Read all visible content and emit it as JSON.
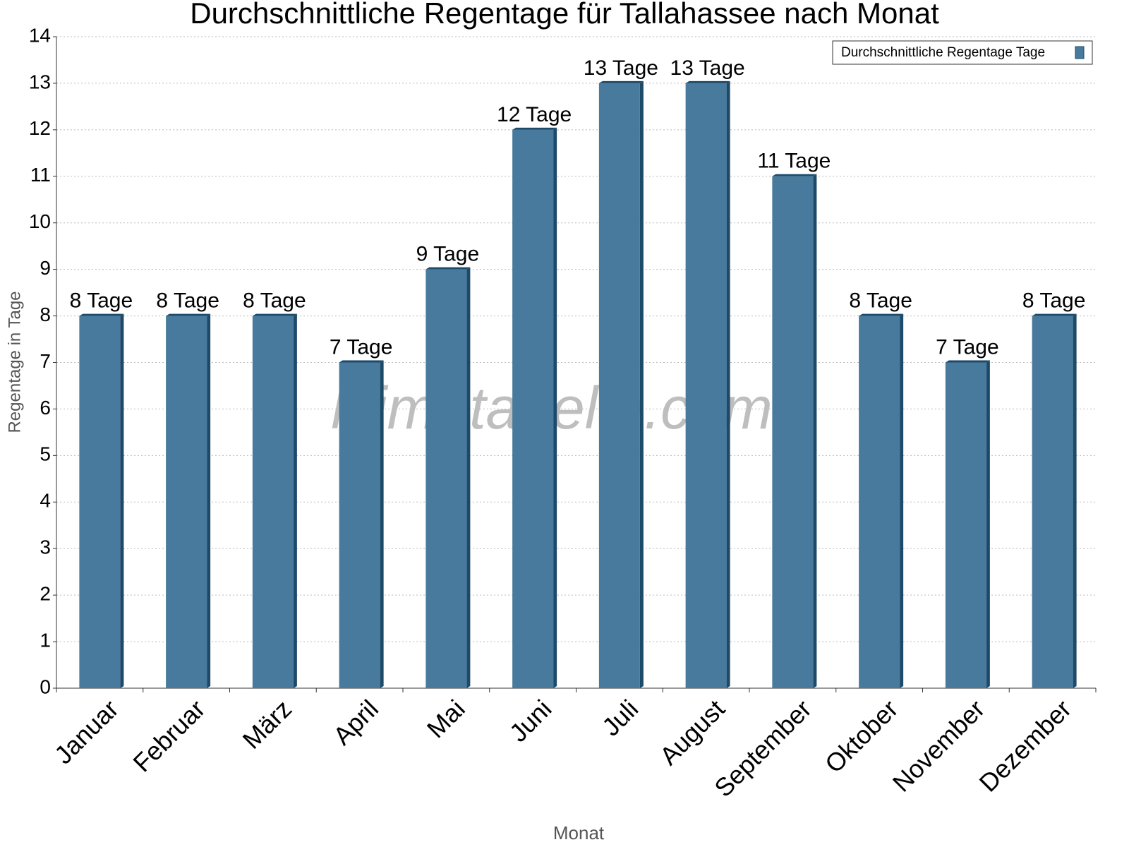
{
  "chart_data": {
    "type": "bar",
    "title": "Durchschnittliche Regentage für Tallahassee nach Monat",
    "x_label": "Monat",
    "y_label": "Regentage in Tage",
    "legend_label": "Durchschnittliche Regentage Tage",
    "watermark": "klimatabelle.com",
    "categories": [
      "Januar",
      "Februar",
      "März",
      "April",
      "Mai",
      "Juni",
      "Juli",
      "August",
      "September",
      "Oktober",
      "November",
      "Dezember"
    ],
    "values": [
      8,
      8,
      8,
      7,
      9,
      12,
      13,
      13,
      11,
      8,
      7,
      8
    ],
    "value_labels": [
      "8 Tage",
      "8 Tage",
      "8 Tage",
      "7 Tage",
      "9 Tage",
      "12 Tage",
      "13 Tage",
      "13 Tage",
      "11 Tage",
      "8 Tage",
      "7 Tage",
      "8 Tage"
    ],
    "color": "#477a9c",
    "ylim": [
      0,
      14
    ],
    "yticks": [
      0,
      1,
      2,
      3,
      4,
      5,
      6,
      7,
      8,
      9,
      10,
      11,
      12,
      13,
      14
    ],
    "grid": true,
    "legend_position": "upper right"
  }
}
